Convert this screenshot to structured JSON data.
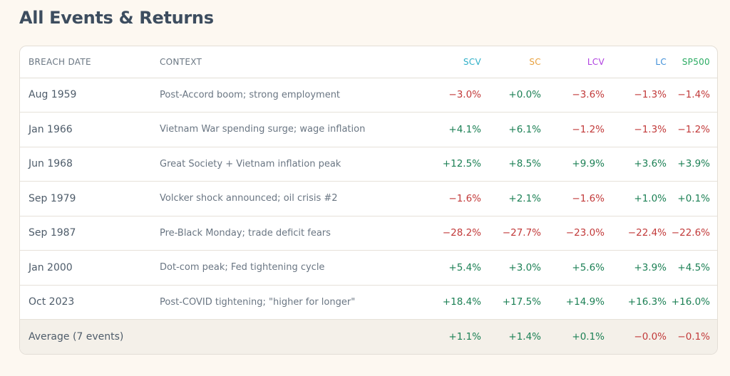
{
  "page_title": "All Events & Returns",
  "colors": {
    "scv": "#2fb0c8",
    "sc": "#e8a13e",
    "lcv": "#b040e0",
    "lc": "#3f8fd8",
    "sp500": "#2aab62",
    "positive": "#1c8055",
    "negative": "#c23a3a"
  },
  "table": {
    "headers": {
      "breach_date": "BREACH DATE",
      "context": "CONTEXT",
      "scv": "SCV",
      "sc": "SC",
      "lcv": "LCV",
      "lc": "LC",
      "sp500": "SP500"
    },
    "rows": [
      {
        "date": "Aug 1959",
        "context": "Post-Accord boom; strong employment",
        "scv": "−3.0%",
        "sc": "+0.0%",
        "lcv": "−3.6%",
        "lc": "−1.3%",
        "sp500": "−1.4%"
      },
      {
        "date": "Jan 1966",
        "context": "Vietnam War spending surge; wage inflation",
        "scv": "+4.1%",
        "sc": "+6.1%",
        "lcv": "−1.2%",
        "lc": "−1.3%",
        "sp500": "−1.2%"
      },
      {
        "date": "Jun 1968",
        "context": "Great Society + Vietnam inflation peak",
        "scv": "+12.5%",
        "sc": "+8.5%",
        "lcv": "+9.9%",
        "lc": "+3.6%",
        "sp500": "+3.9%"
      },
      {
        "date": "Sep 1979",
        "context": "Volcker shock announced; oil crisis #2",
        "scv": "−1.6%",
        "sc": "+2.1%",
        "lcv": "−1.6%",
        "lc": "+1.0%",
        "sp500": "+0.1%"
      },
      {
        "date": "Sep 1987",
        "context": "Pre-Black Monday; trade deficit fears",
        "scv": "−28.2%",
        "sc": "−27.7%",
        "lcv": "−23.0%",
        "lc": "−22.4%",
        "sp500": "−22.6%"
      },
      {
        "date": "Jan 2000",
        "context": "Dot-com peak; Fed tightening cycle",
        "scv": "+5.4%",
        "sc": "+3.0%",
        "lcv": "+5.6%",
        "lc": "+3.9%",
        "sp500": "+4.5%"
      },
      {
        "date": "Oct 2023",
        "context": "Post-COVID tightening; \"higher for longer\"",
        "scv": "+18.4%",
        "sc": "+17.5%",
        "lcv": "+14.9%",
        "lc": "+16.3%",
        "sp500": "+16.0%"
      }
    ],
    "average": {
      "label": "Average (7 events)",
      "scv": "+1.1%",
      "sc": "+1.4%",
      "lcv": "+0.1%",
      "lc": "−0.0%",
      "sp500": "−0.1%"
    }
  }
}
